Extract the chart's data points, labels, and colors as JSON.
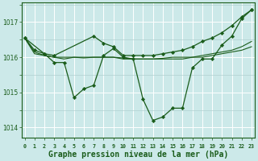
{
  "background_color": "#cce9e9",
  "grid_color": "#b0d0d0",
  "grid_major_color": "#ffffff",
  "line_color": "#1a5c1a",
  "xlabel": "Graphe pression niveau de la mer (hPa)",
  "xlabel_fontsize": 7.0,
  "ylabel_ticks": [
    1014,
    1015,
    1016,
    1017
  ],
  "xlim": [
    -0.3,
    23.3
  ],
  "ylim": [
    1013.7,
    1017.55
  ],
  "line1_x": [
    0,
    1,
    2,
    3,
    4,
    5,
    6,
    7,
    8,
    9,
    10,
    11,
    12,
    13,
    14,
    15,
    16,
    17,
    18,
    19,
    20,
    21,
    22,
    23
  ],
  "line1_y": [
    1016.55,
    1016.2,
    1016.1,
    1015.85,
    1015.85,
    1014.85,
    1015.1,
    1015.2,
    1016.05,
    1016.25,
    1016.0,
    1015.95,
    1014.8,
    1014.2,
    1014.3,
    1014.55,
    1014.55,
    1015.7,
    1015.95,
    1015.95,
    1016.35,
    1016.6,
    1017.1,
    1017.35
  ],
  "line2_x": [
    0,
    2,
    3,
    7,
    8,
    9,
    10,
    11,
    12,
    13,
    14,
    15,
    16,
    17,
    18,
    19,
    20,
    21,
    22,
    23
  ],
  "line2_y": [
    1016.55,
    1016.1,
    1016.05,
    1016.6,
    1016.4,
    1016.3,
    1016.05,
    1016.05,
    1016.05,
    1016.05,
    1016.1,
    1016.15,
    1016.2,
    1016.3,
    1016.45,
    1016.55,
    1016.7,
    1016.9,
    1017.15,
    1017.35
  ],
  "line3_x": [
    0,
    1,
    2,
    3,
    4,
    5,
    6,
    7,
    8,
    9,
    10,
    11,
    12,
    13,
    14,
    15,
    16,
    17,
    18,
    19,
    20,
    21,
    22,
    23
  ],
  "line3_y": [
    1016.55,
    1016.1,
    1016.05,
    1016.0,
    1015.95,
    1016.0,
    1016.0,
    1016.0,
    1016.0,
    1016.0,
    1015.95,
    1015.95,
    1015.95,
    1015.95,
    1015.95,
    1015.95,
    1015.95,
    1016.0,
    1016.0,
    1016.05,
    1016.1,
    1016.15,
    1016.2,
    1016.3
  ],
  "line4_x": [
    0,
    1,
    2,
    3,
    4,
    5,
    6,
    7,
    8,
    9,
    10,
    11,
    12,
    13,
    14,
    15,
    16,
    17,
    18,
    19,
    20,
    21,
    22,
    23
  ],
  "line4_y": [
    1016.55,
    1016.15,
    1016.05,
    1016.0,
    1016.0,
    1016.0,
    1015.98,
    1016.0,
    1016.0,
    1016.0,
    1015.98,
    1015.95,
    1015.95,
    1015.95,
    1015.97,
    1016.0,
    1016.0,
    1016.0,
    1016.05,
    1016.1,
    1016.15,
    1016.2,
    1016.3,
    1016.45
  ],
  "xtick_labels": [
    "0",
    "1",
    "2",
    "3",
    "4",
    "5",
    "6",
    "7",
    "8",
    "9",
    "10",
    "11",
    "12",
    "13",
    "14",
    "15",
    "16",
    "17",
    "18",
    "19",
    "20",
    "21",
    "22",
    "23"
  ]
}
